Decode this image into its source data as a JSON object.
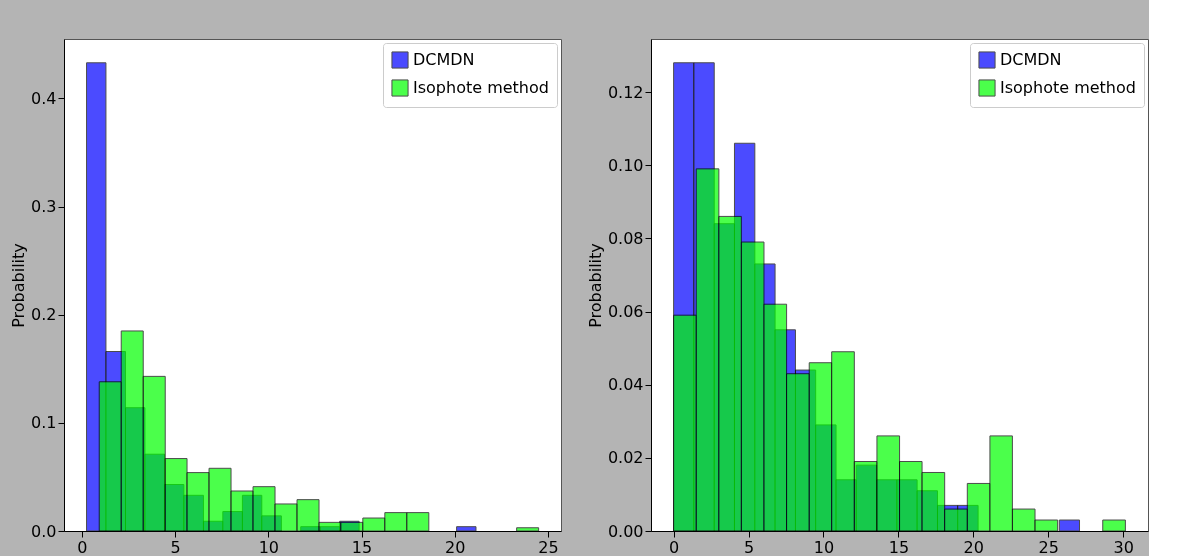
{
  "chart_data": [
    {
      "type": "histogram",
      "ylabel": "Probability",
      "legend": "top right",
      "xlim": [
        -0.96,
        25.7
      ],
      "xticks": [
        0,
        5,
        10,
        15,
        20,
        25
      ],
      "ylim": [
        0,
        0.455
      ],
      "yticks": [
        {
          "value": 0,
          "label": "0.0"
        },
        0.1,
        0.2,
        0.3,
        0.4
      ],
      "bins": [
        0.25,
        1.29,
        2.34,
        3.38,
        4.43,
        5.47,
        6.52,
        7.56,
        8.61,
        9.65,
        10.7,
        11.74,
        12.78,
        13.83,
        14.87,
        15.92,
        16.96,
        18.01,
        19.05,
        20.1,
        21.14
      ],
      "series": [
        {
          "name": "DCMDN",
          "color": "#0000ff",
          "values": [
            0.433,
            0.166,
            0.114,
            0.071,
            0.043,
            0.033,
            0.009,
            0.018,
            0.033,
            0.014,
            0,
            0.004,
            0.004,
            0.009,
            0,
            0,
            0,
            0,
            0,
            0.004
          ]
        },
        {
          "name": "Isophote method",
          "color": "#00ff00",
          "bins": [
            0.93,
            2.11,
            3.29,
            4.47,
            5.64,
            6.82,
            8.0,
            9.18,
            10.36,
            11.54,
            12.72,
            13.89,
            15.07,
            16.25,
            17.43,
            18.61,
            19.79,
            20.97,
            22.14,
            23.32,
            24.5
          ],
          "values": [
            0.138,
            0.185,
            0.143,
            0.067,
            0.054,
            0.058,
            0.037,
            0.041,
            0.025,
            0.029,
            0.008,
            0.008,
            0.012,
            0.017,
            0.017,
            0,
            0,
            0,
            0,
            0.003
          ]
        }
      ]
    },
    {
      "type": "histogram",
      "ylabel": "Probability",
      "legend": "top right",
      "xlim": [
        -1.51,
        31.66
      ],
      "xticks": [
        0,
        5,
        10,
        15,
        20,
        25,
        30
      ],
      "ylim": [
        0,
        0.1345
      ],
      "yticks": [
        {
          "value": 0,
          "label": "0.00"
        },
        {
          "value": 0.02,
          "label": "0.02"
        },
        {
          "value": 0.04,
          "label": "0.04"
        },
        {
          "value": 0.06,
          "label": "0.06"
        },
        {
          "value": 0.08,
          "label": "0.08"
        },
        {
          "value": 0.1,
          "label": "0.10"
        },
        {
          "value": 0.12,
          "label": "0.12"
        }
      ],
      "bins": [
        0,
        1.35,
        2.71,
        4.06,
        5.42,
        6.77,
        8.13,
        9.48,
        10.84,
        12.19,
        13.55,
        14.9,
        16.25,
        17.61,
        18.96,
        20.32,
        21.67,
        23.03,
        24.38,
        25.74,
        27.09
      ],
      "series": [
        {
          "name": "DCMDN",
          "color": "#0000ff",
          "values": [
            0.128,
            0.128,
            0.084,
            0.106,
            0.073,
            0.055,
            0.044,
            0.029,
            0.014,
            0.018,
            0.014,
            0.014,
            0.011,
            0.007,
            0.007,
            0,
            0,
            0,
            0,
            0.003
          ]
        },
        {
          "name": "Isophote method",
          "color": "#00ff00",
          "bins": [
            0,
            1.51,
            3.02,
            4.52,
            6.03,
            7.54,
            9.05,
            10.55,
            12.06,
            13.57,
            15.08,
            16.58,
            18.09,
            19.6,
            21.11,
            22.61,
            24.12,
            25.63,
            27.14,
            28.64,
            30.15
          ],
          "values": [
            0.059,
            0.099,
            0.086,
            0.079,
            0.062,
            0.043,
            0.046,
            0.049,
            0.019,
            0.026,
            0.019,
            0.016,
            0.006,
            0.013,
            0.026,
            0.006,
            0.003,
            0,
            0,
            0.003
          ]
        }
      ]
    }
  ]
}
